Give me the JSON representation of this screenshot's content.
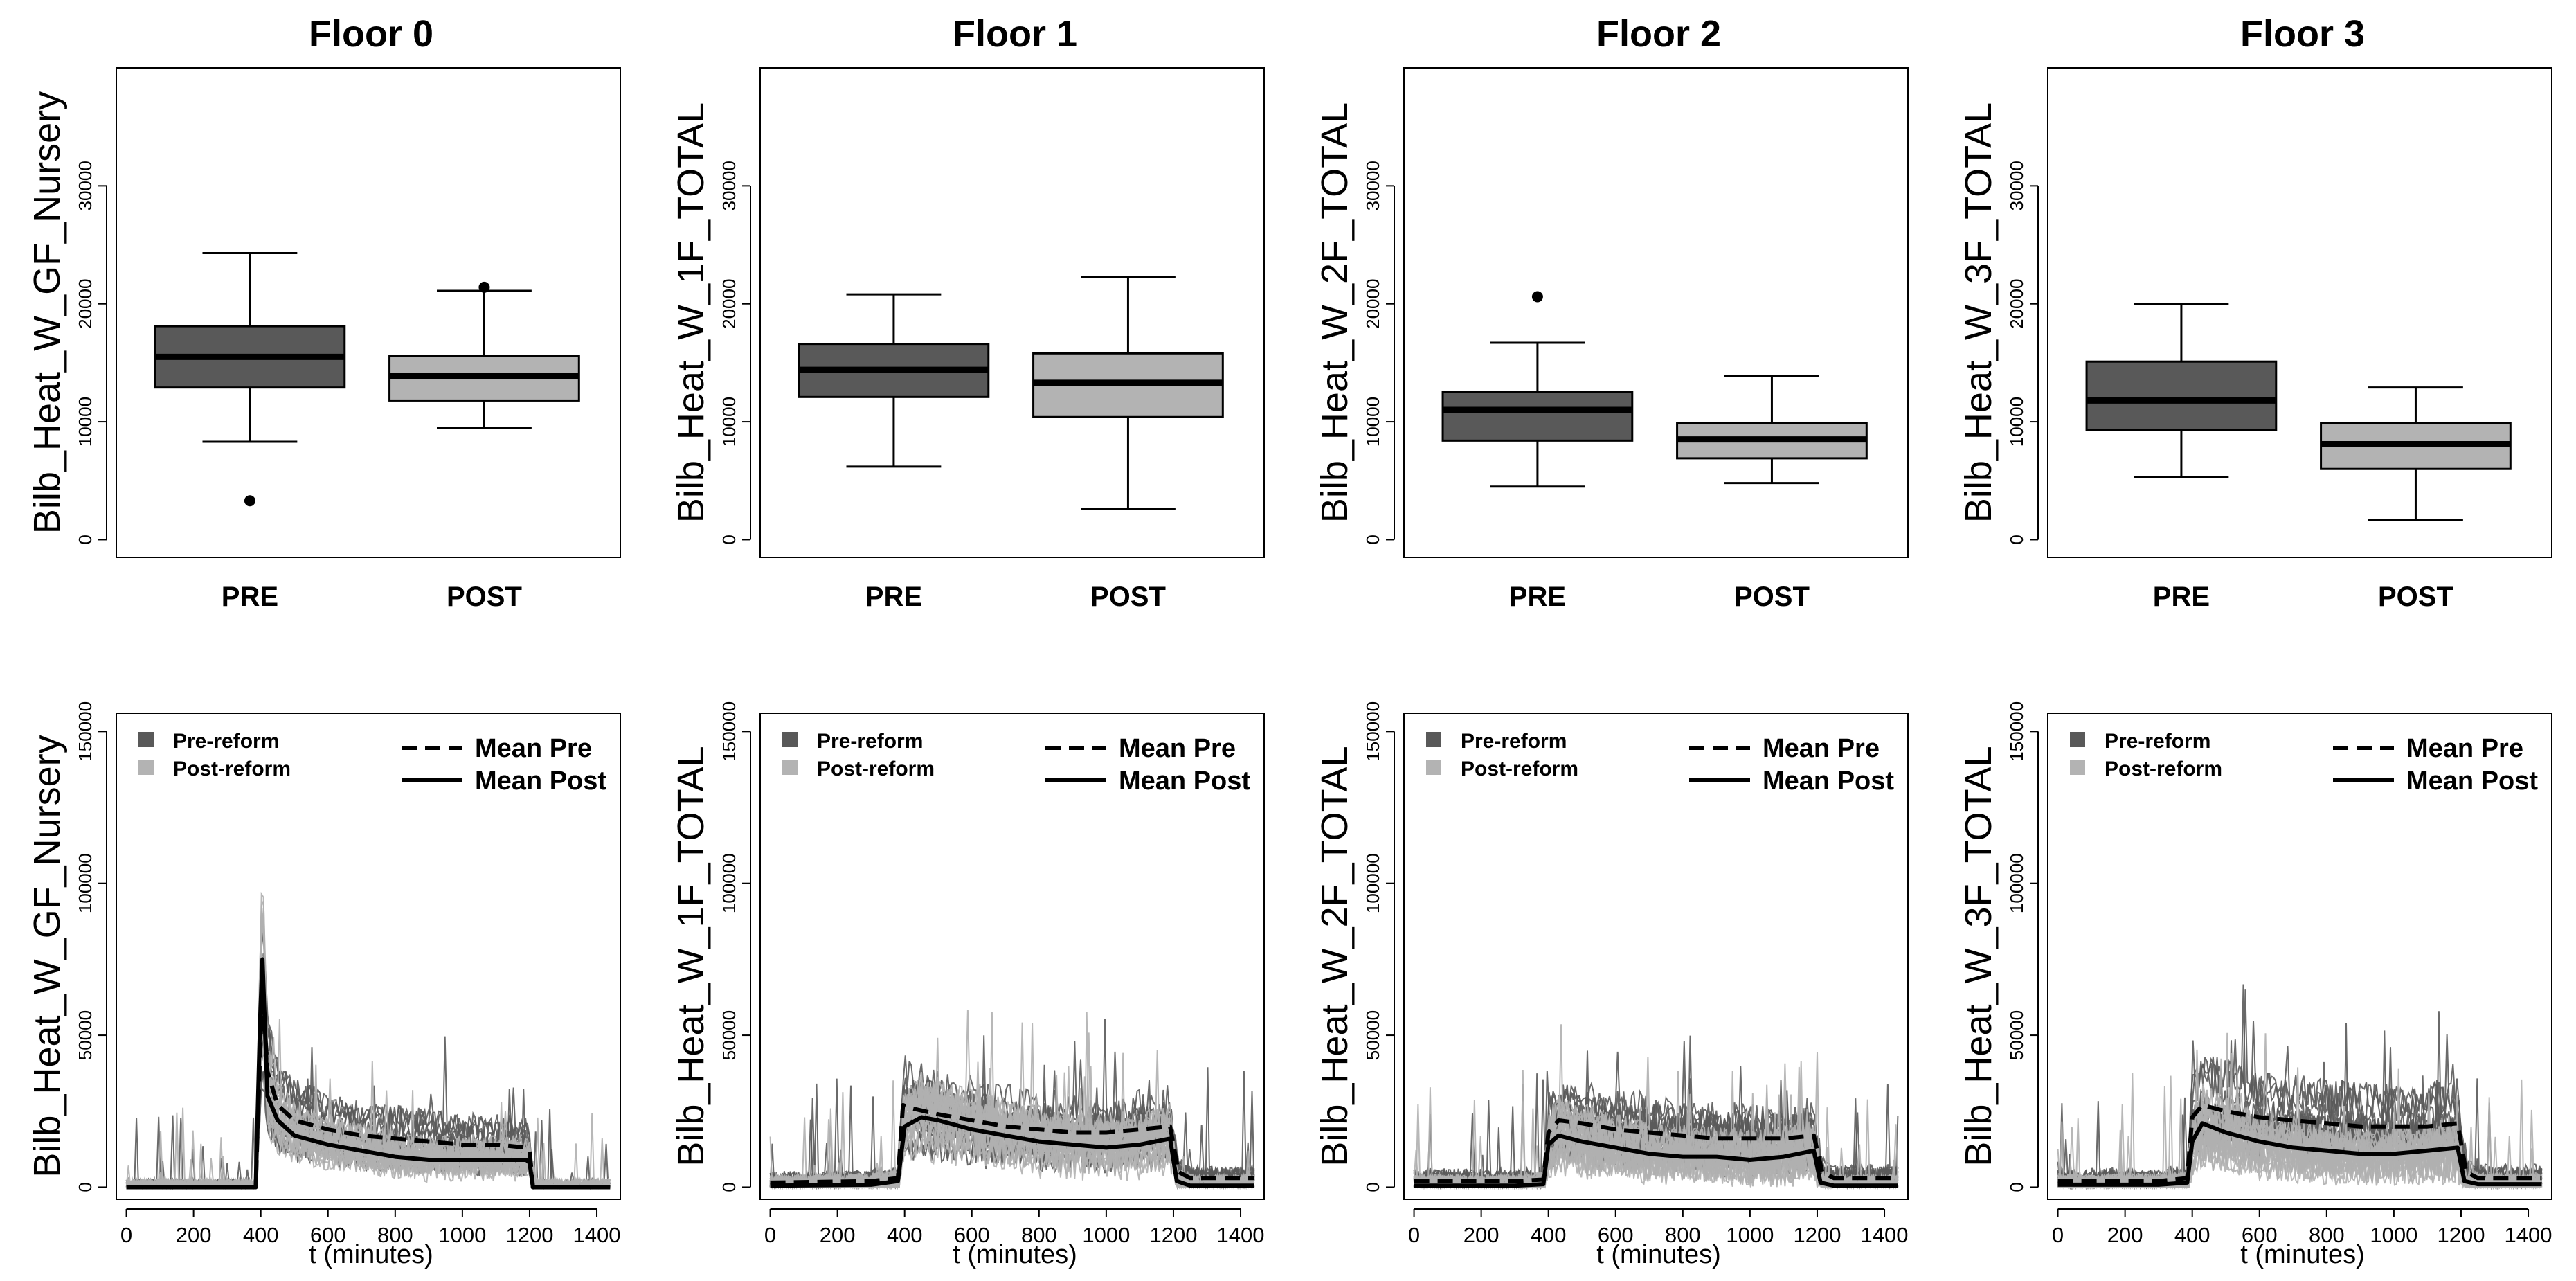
{
  "colors": {
    "pre_box": "#595959",
    "post_box": "#b3b3b3",
    "pre_lines": "#5a5a5a",
    "post_lines": "#b0b0b0",
    "mean": "#000000"
  },
  "chart_data": [
    {
      "type": "boxplot",
      "title": "Floor 0",
      "ylabel": "Bilb_Heat_W_GF_Nursery",
      "categories": [
        "PRE",
        "POST"
      ],
      "ylim": [
        -1500,
        40000
      ],
      "yticks": [
        0,
        10000,
        20000,
        30000
      ],
      "boxes": [
        {
          "name": "PRE",
          "min": 8300,
          "q1": 12900,
          "median": 15500,
          "q3": 18100,
          "max": 24300,
          "outliers": [
            3300
          ]
        },
        {
          "name": "POST",
          "min": 9500,
          "q1": 11800,
          "median": 13900,
          "q3": 15600,
          "max": 21100,
          "outliers": [
            21400
          ]
        }
      ]
    },
    {
      "type": "boxplot",
      "title": "Floor 1",
      "ylabel": "Bilb_Heat_W_1F_TOTAL",
      "categories": [
        "PRE",
        "POST"
      ],
      "ylim": [
        -1500,
        40000
      ],
      "yticks": [
        0,
        10000,
        20000,
        30000
      ],
      "boxes": [
        {
          "name": "PRE",
          "min": 6200,
          "q1": 12100,
          "median": 14400,
          "q3": 16600,
          "max": 20800,
          "outliers": []
        },
        {
          "name": "POST",
          "min": 2600,
          "q1": 10400,
          "median": 13300,
          "q3": 15800,
          "max": 22300,
          "outliers": []
        }
      ]
    },
    {
      "type": "boxplot",
      "title": "Floor 2",
      "ylabel": "Bilb_Heat_W_2F_TOTAL",
      "categories": [
        "PRE",
        "POST"
      ],
      "ylim": [
        -1500,
        40000
      ],
      "yticks": [
        0,
        10000,
        20000,
        30000
      ],
      "boxes": [
        {
          "name": "PRE",
          "min": 4500,
          "q1": 8400,
          "median": 11000,
          "q3": 12500,
          "max": 16700,
          "outliers": [
            20600
          ]
        },
        {
          "name": "POST",
          "min": 4800,
          "q1": 6900,
          "median": 8500,
          "q3": 9900,
          "max": 13900,
          "outliers": []
        }
      ]
    },
    {
      "type": "boxplot",
      "title": "Floor 3",
      "ylabel": "Bilb_Heat_W_3F_TOTAL",
      "categories": [
        "PRE",
        "POST"
      ],
      "ylim": [
        -1500,
        40000
      ],
      "yticks": [
        0,
        10000,
        20000,
        30000
      ],
      "boxes": [
        {
          "name": "PRE",
          "min": 5300,
          "q1": 9300,
          "median": 11800,
          "q3": 15100,
          "max": 20000,
          "outliers": []
        },
        {
          "name": "POST",
          "min": 1700,
          "q1": 6000,
          "median": 8100,
          "q3": 9900,
          "max": 12900,
          "outliers": []
        }
      ]
    },
    {
      "type": "line",
      "ylabel": "Bilb_Heat_W_GF_Nursery",
      "xlabel": "t (minutes)",
      "xlim": [
        -30,
        1470
      ],
      "ylim": [
        -4000,
        156000
      ],
      "xticks": [
        0,
        200,
        400,
        600,
        800,
        1000,
        1200,
        1400
      ],
      "yticks": [
        0,
        50000,
        100000,
        150000
      ],
      "legend_fill": [
        "Pre-reform",
        "Post-reform"
      ],
      "legend_lines": [
        "Mean Pre",
        "Mean Post"
      ],
      "series": [
        {
          "name": "Mean Pre",
          "style": "dashed",
          "x": [
            0,
            385,
            398,
            405,
            420,
            450,
            500,
            600,
            700,
            800,
            900,
            1000,
            1100,
            1190,
            1200,
            1210,
            1440
          ],
          "y": [
            0,
            0,
            45000,
            65000,
            38000,
            27000,
            22000,
            19000,
            17000,
            16000,
            15000,
            14000,
            14000,
            13000,
            12000,
            0,
            0
          ]
        },
        {
          "name": "Mean Post",
          "style": "solid",
          "x": [
            0,
            385,
            398,
            405,
            420,
            450,
            500,
            600,
            700,
            800,
            900,
            1000,
            1100,
            1190,
            1200,
            1210,
            1440
          ],
          "y": [
            0,
            0,
            55000,
            75000,
            30000,
            22000,
            17000,
            14000,
            12000,
            10000,
            9000,
            9000,
            9000,
            9000,
            8000,
            0,
            0
          ]
        }
      ]
    },
    {
      "type": "line",
      "ylabel": "Bilb_Heat_W_1F_TOTAL",
      "xlabel": "t (minutes)",
      "xlim": [
        -30,
        1470
      ],
      "ylim": [
        -4000,
        156000
      ],
      "xticks": [
        0,
        200,
        400,
        600,
        800,
        1000,
        1200,
        1400
      ],
      "yticks": [
        0,
        50000,
        100000,
        150000
      ],
      "legend_fill": [
        "Pre-reform",
        "Post-reform"
      ],
      "legend_lines": [
        "Mean Pre",
        "Mean Post"
      ],
      "series": [
        {
          "name": "Mean Pre",
          "style": "dashed",
          "x": [
            0,
            300,
            380,
            395,
            420,
            500,
            600,
            700,
            800,
            900,
            1000,
            1100,
            1190,
            1215,
            1250,
            1440
          ],
          "y": [
            1500,
            2000,
            3000,
            27000,
            26000,
            24000,
            22000,
            20000,
            19000,
            18000,
            18000,
            19000,
            20000,
            5000,
            3000,
            3000
          ]
        },
        {
          "name": "Mean Post",
          "style": "solid",
          "x": [
            0,
            300,
            380,
            400,
            450,
            500,
            600,
            700,
            800,
            900,
            1000,
            1100,
            1190,
            1210,
            1250,
            1440
          ],
          "y": [
            500,
            800,
            2000,
            20000,
            23000,
            22000,
            19000,
            17000,
            15000,
            14000,
            13000,
            14000,
            16000,
            2000,
            500,
            500
          ]
        }
      ]
    },
    {
      "type": "line",
      "ylabel": "Bilb_Heat_W_2F_TOTAL",
      "xlabel": "t (minutes)",
      "xlim": [
        -30,
        1470
      ],
      "ylim": [
        -4000,
        156000
      ],
      "xticks": [
        0,
        200,
        400,
        600,
        800,
        1000,
        1200,
        1400
      ],
      "yticks": [
        0,
        50000,
        100000,
        150000
      ],
      "legend_fill": [
        "Pre-reform",
        "Post-reform"
      ],
      "legend_lines": [
        "Mean Pre",
        "Mean Post"
      ],
      "series": [
        {
          "name": "Mean Pre",
          "style": "dashed",
          "x": [
            0,
            300,
            385,
            400,
            430,
            500,
            600,
            700,
            800,
            900,
            1000,
            1100,
            1190,
            1215,
            1250,
            1440
          ],
          "y": [
            2000,
            2000,
            2500,
            18000,
            22000,
            21000,
            19000,
            18000,
            17000,
            16000,
            16000,
            16000,
            17000,
            5000,
            3000,
            3000
          ]
        },
        {
          "name": "Mean Post",
          "style": "solid",
          "x": [
            0,
            300,
            385,
            400,
            430,
            500,
            600,
            700,
            800,
            900,
            1000,
            1100,
            1190,
            1210,
            1250,
            1440
          ],
          "y": [
            500,
            500,
            1000,
            14000,
            17000,
            15000,
            13000,
            11000,
            10000,
            10000,
            9000,
            10000,
            12000,
            1500,
            500,
            500
          ]
        }
      ]
    },
    {
      "type": "line",
      "ylabel": "Bilb_Heat_W_3F_TOTAL",
      "xlabel": "t (minutes)",
      "xlim": [
        -30,
        1470
      ],
      "ylim": [
        -4000,
        156000
      ],
      "xticks": [
        0,
        200,
        400,
        600,
        800,
        1000,
        1200,
        1400
      ],
      "yticks": [
        0,
        50000,
        100000,
        150000
      ],
      "legend_fill": [
        "Pre-reform",
        "Post-reform"
      ],
      "legend_lines": [
        "Mean Pre",
        "Mean Post"
      ],
      "series": [
        {
          "name": "Mean Pre",
          "style": "dashed",
          "x": [
            0,
            300,
            385,
            400,
            430,
            500,
            600,
            700,
            800,
            900,
            1000,
            1100,
            1190,
            1215,
            1250,
            1440
          ],
          "y": [
            2000,
            2000,
            3000,
            23000,
            27000,
            25000,
            23000,
            22000,
            21000,
            20000,
            20000,
            20000,
            21000,
            5000,
            3000,
            3000
          ]
        },
        {
          "name": "Mean Post",
          "style": "solid",
          "x": [
            0,
            300,
            385,
            400,
            430,
            500,
            600,
            700,
            800,
            900,
            1000,
            1100,
            1190,
            1210,
            1250,
            1440
          ],
          "y": [
            800,
            800,
            1500,
            15000,
            21000,
            18000,
            15000,
            13000,
            12000,
            11000,
            11000,
            12000,
            13000,
            2000,
            1000,
            1000
          ]
        }
      ]
    }
  ]
}
